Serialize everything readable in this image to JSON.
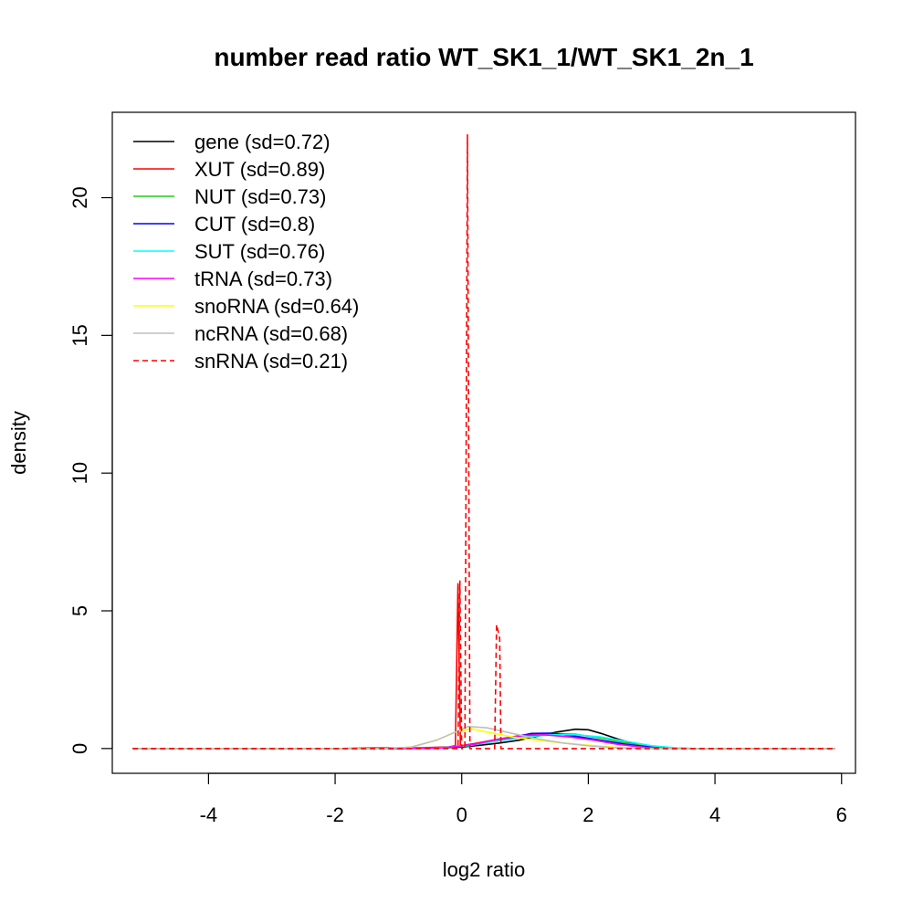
{
  "chart_data": {
    "type": "line",
    "title": "number read ratio WT_SK1_1/WT_SK1_2n_1",
    "xlabel": "log2 ratio",
    "ylabel": "density",
    "xlim": [
      -5.52,
      6.22
    ],
    "ylim": [
      -0.9,
      23.1
    ],
    "xticks": [
      -4,
      -2,
      0,
      2,
      4,
      6
    ],
    "yticks": [
      0,
      5,
      10,
      15,
      20
    ],
    "xtick_labels": [
      "-4",
      "-2",
      "0",
      "2",
      "4",
      "6"
    ],
    "ytick_labels": [
      "0",
      "5",
      "10",
      "15",
      "20"
    ],
    "grid": false,
    "legend_position": "top-left",
    "series": [
      {
        "name": "gene (sd=0.72)",
        "color": "#000000",
        "dash": "solid",
        "points": [
          [
            -5.2,
            0
          ],
          [
            -1.5,
            0
          ],
          [
            -0.5,
            0.01
          ],
          [
            0,
            0.05
          ],
          [
            0.3,
            0.12
          ],
          [
            0.6,
            0.2
          ],
          [
            0.9,
            0.3
          ],
          [
            1.2,
            0.45
          ],
          [
            1.5,
            0.6
          ],
          [
            1.8,
            0.7
          ],
          [
            2.0,
            0.68
          ],
          [
            2.2,
            0.55
          ],
          [
            2.5,
            0.32
          ],
          [
            2.8,
            0.12
          ],
          [
            3.2,
            0.03
          ],
          [
            3.6,
            0
          ],
          [
            5.9,
            0
          ]
        ]
      },
      {
        "name": "XUT (sd=0.89)",
        "color": "#ff0000",
        "dash": "solid",
        "points": [
          [
            -5.2,
            0
          ],
          [
            -2,
            0
          ],
          [
            -1.4,
            0.02
          ],
          [
            -1.0,
            0.02
          ],
          [
            -0.6,
            0.03
          ],
          [
            -0.2,
            0.06
          ],
          [
            -0.1,
            0.1
          ],
          [
            -0.06,
            6.0
          ],
          [
            -0.02,
            0.1
          ],
          [
            0.2,
            0.18
          ],
          [
            0.6,
            0.35
          ],
          [
            1.0,
            0.5
          ],
          [
            1.3,
            0.55
          ],
          [
            1.6,
            0.5
          ],
          [
            2.0,
            0.35
          ],
          [
            2.4,
            0.18
          ],
          [
            2.8,
            0.06
          ],
          [
            3.2,
            0.01
          ],
          [
            3.5,
            0
          ],
          [
            5.9,
            0
          ]
        ]
      },
      {
        "name": "NUT (sd=0.73)",
        "color": "#22cc22",
        "dash": "solid",
        "points": [
          [
            -5.2,
            0
          ],
          [
            -1,
            0
          ],
          [
            -0.3,
            0.03
          ],
          [
            0.2,
            0.15
          ],
          [
            0.6,
            0.3
          ],
          [
            1.0,
            0.45
          ],
          [
            1.4,
            0.55
          ],
          [
            1.8,
            0.52
          ],
          [
            2.2,
            0.38
          ],
          [
            2.6,
            0.2
          ],
          [
            3.0,
            0.06
          ],
          [
            3.4,
            0.01
          ],
          [
            3.7,
            0
          ],
          [
            5.9,
            0
          ]
        ]
      },
      {
        "name": "CUT (sd=0.8)",
        "color": "#0000ff",
        "dash": "solid",
        "points": [
          [
            -5.2,
            0
          ],
          [
            -1,
            0
          ],
          [
            -0.4,
            0.02
          ],
          [
            0,
            0.08
          ],
          [
            0.4,
            0.22
          ],
          [
            0.8,
            0.4
          ],
          [
            1.1,
            0.55
          ],
          [
            1.4,
            0.56
          ],
          [
            1.8,
            0.45
          ],
          [
            2.2,
            0.3
          ],
          [
            2.6,
            0.15
          ],
          [
            3.0,
            0.05
          ],
          [
            3.4,
            0.01
          ],
          [
            3.7,
            0
          ],
          [
            5.9,
            0
          ]
        ]
      },
      {
        "name": "SUT (sd=0.76)",
        "color": "#00ffff",
        "dash": "solid",
        "points": [
          [
            -5.2,
            0
          ],
          [
            -1,
            0
          ],
          [
            -0.4,
            0.02
          ],
          [
            0.1,
            0.1
          ],
          [
            0.5,
            0.25
          ],
          [
            1.0,
            0.42
          ],
          [
            1.4,
            0.5
          ],
          [
            1.8,
            0.5
          ],
          [
            2.2,
            0.42
          ],
          [
            2.6,
            0.26
          ],
          [
            3.0,
            0.1
          ],
          [
            3.4,
            0.02
          ],
          [
            3.7,
            0
          ],
          [
            5.9,
            0
          ]
        ]
      },
      {
        "name": "tRNA (sd=0.73)",
        "color": "#ff00ff",
        "dash": "solid",
        "points": [
          [
            -5.2,
            0
          ],
          [
            -1,
            0
          ],
          [
            -0.3,
            0.02
          ],
          [
            0.2,
            0.15
          ],
          [
            0.6,
            0.35
          ],
          [
            1.0,
            0.48
          ],
          [
            1.3,
            0.5
          ],
          [
            1.7,
            0.42
          ],
          [
            2.1,
            0.3
          ],
          [
            2.5,
            0.14
          ],
          [
            2.9,
            0.04
          ],
          [
            3.3,
            0
          ],
          [
            5.9,
            0
          ]
        ]
      },
      {
        "name": "snoRNA (sd=0.64)",
        "color": "#ffff00",
        "dash": "solid",
        "points": [
          [
            -5.2,
            0
          ],
          [
            -1.2,
            0
          ],
          [
            -0.8,
            0.05
          ],
          [
            -0.4,
            0.3
          ],
          [
            -0.1,
            0.6
          ],
          [
            0.15,
            0.72
          ],
          [
            0.4,
            0.6
          ],
          [
            0.8,
            0.42
          ],
          [
            1.2,
            0.3
          ],
          [
            1.6,
            0.2
          ],
          [
            2.0,
            0.12
          ],
          [
            2.4,
            0.05
          ],
          [
            2.8,
            0.01
          ],
          [
            3.0,
            0
          ],
          [
            5.9,
            0
          ]
        ]
      },
      {
        "name": "ncRNA (sd=0.68)",
        "color": "#bebebe",
        "dash": "solid",
        "points": [
          [
            -5.2,
            0
          ],
          [
            -1.2,
            0
          ],
          [
            -0.8,
            0.05
          ],
          [
            -0.4,
            0.3
          ],
          [
            -0.1,
            0.6
          ],
          [
            0.1,
            0.8
          ],
          [
            0.4,
            0.75
          ],
          [
            0.8,
            0.55
          ],
          [
            1.2,
            0.35
          ],
          [
            1.6,
            0.2
          ],
          [
            2.0,
            0.1
          ],
          [
            2.4,
            0.03
          ],
          [
            2.8,
            0
          ],
          [
            5.9,
            0
          ]
        ]
      },
      {
        "name": "snRNA (sd=0.21)",
        "color": "#ff0000",
        "dash": "dashed",
        "points": [
          [
            -5.2,
            0
          ],
          [
            -0.06,
            0
          ],
          [
            -0.03,
            6.1
          ],
          [
            0,
            0
          ],
          [
            0.05,
            0
          ],
          [
            0.09,
            22.3
          ],
          [
            0.13,
            0
          ],
          [
            0.52,
            0
          ],
          [
            0.55,
            4.5
          ],
          [
            0.6,
            4.0
          ],
          [
            0.62,
            0
          ],
          [
            5.9,
            0
          ]
        ]
      }
    ]
  }
}
